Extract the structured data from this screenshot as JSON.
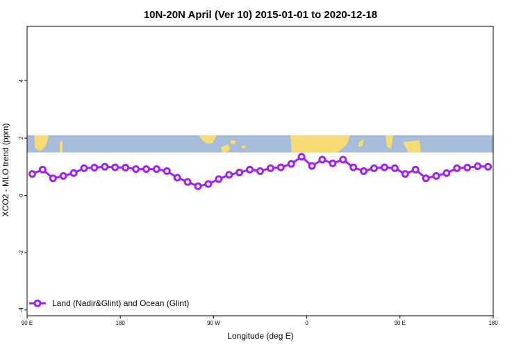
{
  "chart_data": {
    "type": "line",
    "title": "10N-20N April (Ver 10)   2015-01-01 to 2020-12-18",
    "xlabel": "Longitude (deg E)",
    "ylabel": "XCO2 - MLO trend (ppm)",
    "xlim": [
      90,
      540
    ],
    "ylim": [
      -4.2,
      5.9
    ],
    "x_ticks": [
      {
        "value": 90,
        "label": "90 E"
      },
      {
        "value": 180,
        "label": "180"
      },
      {
        "value": 270,
        "label": "90 W"
      },
      {
        "value": 360,
        "label": "0"
      },
      {
        "value": 450,
        "label": "90 E"
      },
      {
        "value": 540,
        "label": "180"
      }
    ],
    "y_ticks": [
      {
        "value": -4,
        "label": "-4"
      },
      {
        "value": -2,
        "label": "-2"
      },
      {
        "value": 0,
        "label": "0"
      },
      {
        "value": 2,
        "label": "2"
      },
      {
        "value": 4,
        "label": "4"
      }
    ],
    "series": [
      {
        "name": "Land (Nadir&Glint) and Ocean (Glint)",
        "color": "#a020f0",
        "x": [
          95,
          105,
          115,
          125,
          135,
          145,
          155,
          165,
          175,
          185,
          195,
          205,
          215,
          225,
          235,
          245,
          255,
          265,
          275,
          285,
          295,
          305,
          315,
          325,
          335,
          345,
          355,
          365,
          375,
          385,
          395,
          405,
          415,
          425,
          435,
          445,
          455,
          465,
          475,
          485,
          495,
          505,
          515,
          525,
          535
        ],
        "y": [
          0.75,
          0.9,
          0.6,
          0.68,
          0.78,
          0.95,
          0.97,
          1.0,
          0.98,
          0.97,
          0.92,
          0.92,
          0.92,
          0.85,
          0.62,
          0.47,
          0.32,
          0.4,
          0.57,
          0.72,
          0.8,
          0.9,
          0.85,
          0.95,
          0.98,
          1.1,
          1.35,
          1.03,
          1.25,
          1.12,
          1.25,
          0.98,
          0.85,
          0.95,
          0.98,
          0.95,
          0.75,
          0.9,
          0.6,
          0.68,
          0.78,
          0.95,
          0.97,
          1.02,
          1.0
        ]
      }
    ],
    "map_strip": {
      "y_range": [
        1.5,
        2.1
      ],
      "ocean_color": "#a7bcdb",
      "land_color": "#f7dc73"
    },
    "legend": {
      "placement": "bottom-left"
    },
    "grid": false
  }
}
